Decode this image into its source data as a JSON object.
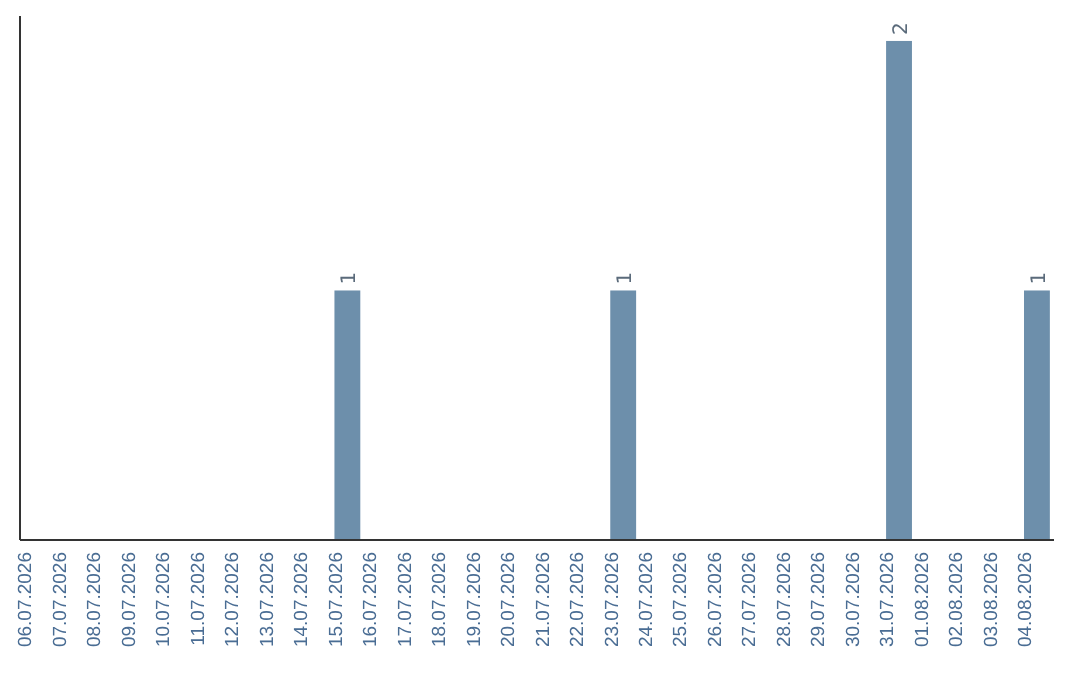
{
  "chart_data": {
    "type": "bar",
    "categories": [
      "06.07.2026",
      "07.07.2026",
      "08.07.2026",
      "09.07.2026",
      "10.07.2026",
      "11.07.2026",
      "12.07.2026",
      "13.07.2026",
      "14.07.2026",
      "15.07.2026",
      "16.07.2026",
      "17.07.2026",
      "18.07.2026",
      "19.07.2026",
      "20.07.2026",
      "21.07.2026",
      "22.07.2026",
      "23.07.2026",
      "24.07.2026",
      "25.07.2026",
      "26.07.2026",
      "27.07.2026",
      "28.07.2026",
      "29.07.2026",
      "30.07.2026",
      "31.07.2026",
      "01.08.2026",
      "02.08.2026",
      "03.08.2026",
      "04.08.2026"
    ],
    "values": [
      0,
      0,
      0,
      0,
      0,
      0,
      0,
      0,
      0,
      1,
      0,
      0,
      0,
      0,
      0,
      0,
      0,
      1,
      0,
      0,
      0,
      0,
      0,
      0,
      0,
      2,
      0,
      0,
      0,
      1
    ],
    "value_labels": [
      null,
      null,
      null,
      null,
      null,
      null,
      null,
      null,
      null,
      "1",
      null,
      null,
      null,
      null,
      null,
      null,
      null,
      "1",
      null,
      null,
      null,
      null,
      null,
      null,
      null,
      "2",
      null,
      null,
      null,
      "1"
    ],
    "color": "#6d8fab",
    "ylim": [
      0,
      2.1
    ],
    "tick_labels": "x",
    "grid": false
  }
}
